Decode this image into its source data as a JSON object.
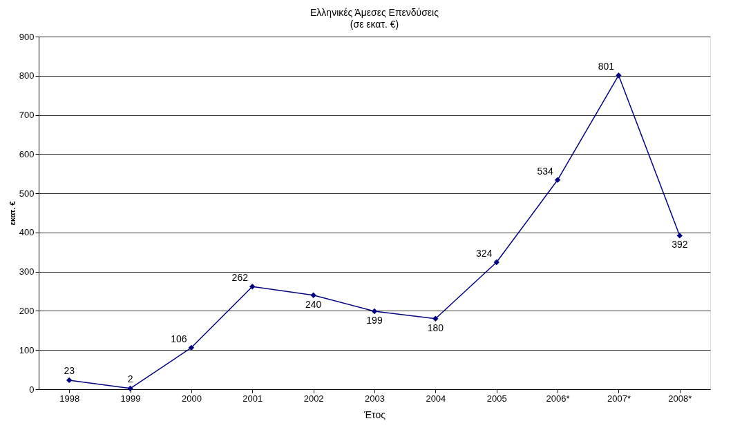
{
  "chart_data": {
    "type": "line",
    "title": "Ελληνικές Άμεσες Επενδύσεις",
    "subtitle": "(σε εκατ. €)",
    "xlabel": "Έτος",
    "ylabel": "εκατ. €",
    "categories": [
      "1998",
      "1999",
      "2000",
      "2001",
      "2002",
      "2003",
      "2004",
      "2005",
      "2006*",
      "2007*",
      "2008*"
    ],
    "series": [
      {
        "color": "#000080",
        "values": [
          23,
          2,
          106,
          262,
          240,
          199,
          180,
          324,
          534,
          801,
          392
        ]
      }
    ],
    "ylim": [
      0,
      900
    ],
    "yticks": [
      0,
      100,
      200,
      300,
      400,
      500,
      600,
      700,
      800,
      900
    ],
    "grid": "y",
    "marker": "diamond",
    "line_style": "solid",
    "data_labels": true
  }
}
